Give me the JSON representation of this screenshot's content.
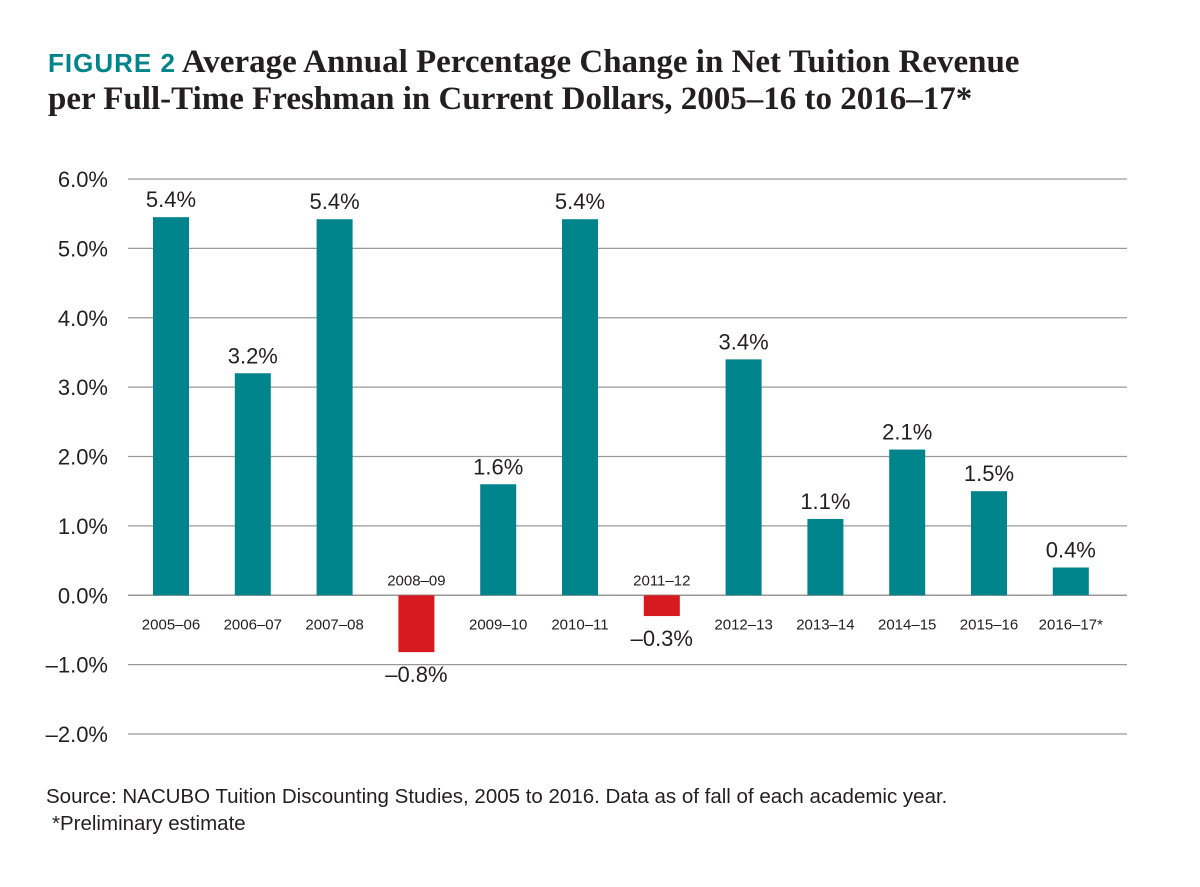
{
  "figure_label": "FIGURE 2",
  "title_line1": "Average Annual Percentage Change in Net Tuition Revenue",
  "title_line2": "per Full-Time Freshman in Current Dollars, 2005–16 to 2016–17*",
  "source": "Source: NACUBO Tuition Discounting Studies, 2005 to 2016. Data as of fall of each academic year.",
  "note": "*Preliminary estimate",
  "colors": {
    "positive": "#00848c",
    "negative": "#d71920",
    "grid": "#999999",
    "text": "#231f20"
  },
  "chart_data": {
    "type": "bar",
    "title": "Average Annual Percentage Change in Net Tuition Revenue per Full-Time Freshman in Current Dollars, 2005–16 to 2016–17*",
    "xlabel": "",
    "ylabel": "",
    "ylim": [
      -2.0,
      6.0
    ],
    "yticks": [
      6.0,
      5.0,
      4.0,
      3.0,
      2.0,
      1.0,
      0.0,
      -1.0,
      -2.0
    ],
    "ytick_labels": [
      "6.0%",
      "5.0%",
      "4.0%",
      "3.0%",
      "2.0%",
      "1.0%",
      "0.0%",
      "–1.0%",
      "–2.0%"
    ],
    "grid": true,
    "categories": [
      "2005–06",
      "2006–07",
      "2007–08",
      "2008–09",
      "2009–10",
      "2010–11",
      "2011–12",
      "2012–13",
      "2013–14",
      "2014–15",
      "2015–16",
      "2016–17*"
    ],
    "values": [
      5.45,
      3.2,
      5.42,
      -0.82,
      1.6,
      5.42,
      -0.3,
      3.4,
      1.1,
      2.1,
      1.5,
      0.4
    ],
    "data_labels": [
      "5.4%",
      "3.2%",
      "5.4%",
      "–0.8%",
      "1.6%",
      "5.4%",
      "–0.3%",
      "3.4%",
      "1.1%",
      "2.1%",
      "1.5%",
      "0.4%"
    ]
  }
}
